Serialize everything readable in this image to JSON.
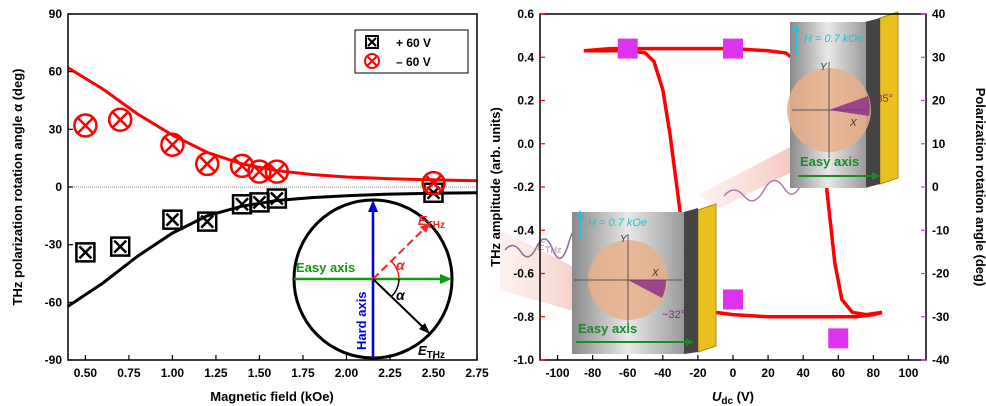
{
  "chart_data": [
    {
      "type": "scatter",
      "xlabel": "Magnetic field (kOe)",
      "ylabel": "THz polarization rotation angle α (deg)",
      "xlim": [
        0.4,
        2.75
      ],
      "ylim": [
        -90,
        90
      ],
      "xticks": [
        "0.50",
        "0.75",
        "1.00",
        "1.25",
        "1.50",
        "1.75",
        "2.00",
        "2.25",
        "2.50",
        "2.75"
      ],
      "yticks": [
        "-90",
        "-60",
        "-30",
        "0",
        "30",
        "60",
        "90"
      ],
      "grid": false,
      "legend_position": "top-right",
      "series": [
        {
          "name": "+ 60 V",
          "color": "#000000",
          "marker": "boxed-x",
          "points": [
            [
              0.5,
              -34
            ],
            [
              0.7,
              -31
            ],
            [
              1.0,
              -17
            ],
            [
              1.2,
              -18
            ],
            [
              1.4,
              -9
            ],
            [
              1.5,
              -8
            ],
            [
              1.6,
              -6
            ],
            [
              2.5,
              -3
            ]
          ],
          "fit": [
            [
              0.4,
              -62
            ],
            [
              0.6,
              -50
            ],
            [
              0.8,
              -36
            ],
            [
              1.0,
              -24
            ],
            [
              1.2,
              -15
            ],
            [
              1.4,
              -10
            ],
            [
              1.6,
              -7
            ],
            [
              1.8,
              -5.5
            ],
            [
              2.0,
              -4.5
            ],
            [
              2.25,
              -3.7
            ],
            [
              2.5,
              -3.2
            ],
            [
              2.75,
              -3
            ]
          ]
        },
        {
          "name": "– 60 V",
          "color": "#ff0000",
          "marker": "circled-x",
          "points": [
            [
              0.5,
              32
            ],
            [
              0.7,
              35
            ],
            [
              1.0,
              22
            ],
            [
              1.2,
              12
            ],
            [
              1.4,
              11
            ],
            [
              1.5,
              8
            ],
            [
              1.6,
              8
            ],
            [
              2.5,
              2
            ]
          ],
          "fit": [
            [
              0.4,
              62
            ],
            [
              0.6,
              51
            ],
            [
              0.8,
              38
            ],
            [
              1.0,
              27
            ],
            [
              1.2,
              18
            ],
            [
              1.4,
              12
            ],
            [
              1.6,
              8.5
            ],
            [
              1.8,
              6.5
            ],
            [
              2.0,
              5.2
            ],
            [
              2.25,
              4.3
            ],
            [
              2.5,
              3.7
            ],
            [
              2.75,
              3.3
            ]
          ]
        }
      ],
      "inset": {
        "easy_axis": "Easy axis",
        "hard_axis": "Hard axis",
        "alpha": "α",
        "e_field": "E",
        "e_sub": "THz"
      }
    },
    {
      "type": "line",
      "xlabel_main": "U",
      "xlabel_sub": "dc",
      "xlabel_unit": " (V)",
      "ylabel": "THz amplitude (arb. units)",
      "y2label": "Polarization rotation angle (deg)",
      "xlim": [
        -110,
        110
      ],
      "ylim": [
        -1.0,
        0.6
      ],
      "y2lim": [
        -40,
        40
      ],
      "xticks": [
        "-100",
        "-80",
        "-60",
        "-40",
        "-20",
        "0",
        "20",
        "40",
        "60",
        "80",
        "100"
      ],
      "yticks": [
        "-1.0",
        "-0.8",
        "-0.6",
        "-0.4",
        "-0.2",
        "0.0",
        "0.2",
        "0.4",
        "0.6"
      ],
      "y2ticks": [
        "-40",
        "-30",
        "-20",
        "-10",
        "0",
        "10",
        "20",
        "30",
        "40"
      ],
      "colors": {
        "hysteresis": "#ff0000",
        "rotation": "#dd33ee"
      },
      "hysteresis_upper": [
        [
          -85,
          0.43
        ],
        [
          -70,
          0.43
        ],
        [
          -60,
          0.43
        ],
        [
          -50,
          0.42
        ],
        [
          -45,
          0.38
        ],
        [
          -40,
          0.25
        ],
        [
          -36,
          0.05
        ],
        [
          -32,
          -0.2
        ],
        [
          -28,
          -0.45
        ],
        [
          -24,
          -0.65
        ],
        [
          -18,
          -0.75
        ],
        [
          -10,
          -0.78
        ],
        [
          0,
          -0.79
        ],
        [
          20,
          -0.8
        ],
        [
          40,
          -0.8
        ],
        [
          60,
          -0.8
        ],
        [
          70,
          -0.8
        ],
        [
          80,
          -0.79
        ],
        [
          85,
          -0.78
        ]
      ],
      "hysteresis_lower": [
        [
          -85,
          0.43
        ],
        [
          -70,
          0.44
        ],
        [
          -50,
          0.44
        ],
        [
          -30,
          0.44
        ],
        [
          0,
          0.44
        ],
        [
          20,
          0.43
        ],
        [
          30,
          0.42
        ],
        [
          40,
          0.36
        ],
        [
          45,
          0.25
        ],
        [
          50,
          0.05
        ],
        [
          54,
          -0.25
        ],
        [
          58,
          -0.55
        ],
        [
          62,
          -0.72
        ],
        [
          68,
          -0.78
        ],
        [
          76,
          -0.79
        ],
        [
          85,
          -0.78
        ]
      ],
      "rotation_points": [
        [
          -60,
          32
        ],
        [
          0,
          32
        ],
        [
          0,
          -26
        ],
        [
          60,
          -35
        ]
      ],
      "inset_top": {
        "field": "H = 0.7 kOe",
        "y": "Y",
        "x": "X",
        "angle": "~35°",
        "easy_axis": "Easy axis"
      },
      "inset_bottom": {
        "field": "H = 0.7 kOe",
        "y": "Y",
        "x": "X",
        "angle": "~32°",
        "easy_axis": "Easy axis",
        "e_field": "E",
        "e_sub": "THz"
      }
    }
  ]
}
